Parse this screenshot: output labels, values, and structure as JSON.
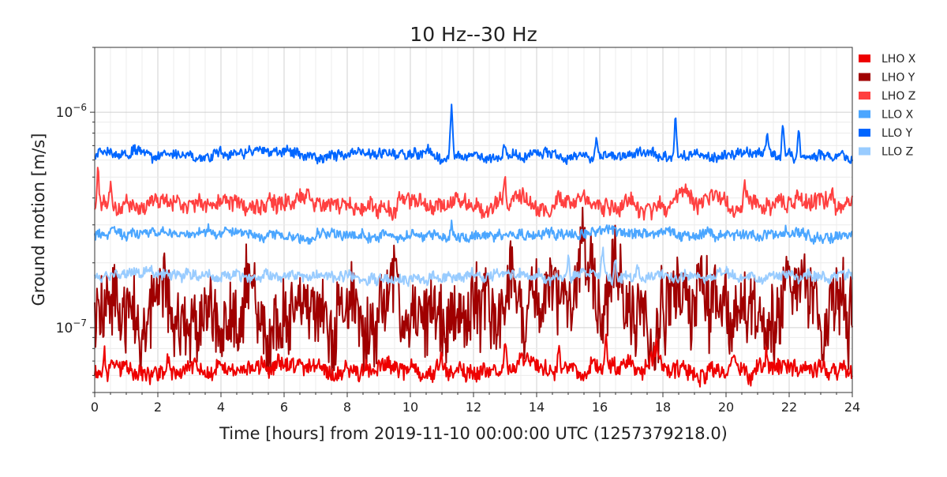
{
  "chart_data": {
    "type": "line",
    "title": "10 Hz--30 Hz",
    "xlabel": "Time [hours] from 2019-11-10 00:00:00 UTC (1257379218.0)",
    "ylabel": "Ground motion [m/s]",
    "xlim": [
      0,
      24
    ],
    "ylim": [
      5e-08,
      2e-06
    ],
    "yscale": "log",
    "grid": true,
    "legend_position": "right",
    "x_ticks": [
      0,
      2,
      4,
      6,
      8,
      10,
      12,
      14,
      16,
      18,
      20,
      22,
      24
    ],
    "x_tick_labels": [
      "0",
      "2",
      "4",
      "6",
      "8",
      "10",
      "12",
      "14",
      "16",
      "18",
      "20",
      "22",
      "24"
    ],
    "y_tick_labels": [
      {
        "value": 1e-06,
        "base": "10",
        "exp": "−6"
      },
      {
        "value": 1e-07,
        "base": "10",
        "exp": "−7"
      }
    ],
    "series": [
      {
        "name": "LHO X",
        "color": "#ee0000",
        "baseline": 6.4e-08,
        "noise": 0.05,
        "spikes": [
          [
            0.3,
            8.6e-08
          ],
          [
            2.3,
            7.2e-08
          ],
          [
            5.8,
            7.4e-08
          ],
          [
            11.0,
            7.5e-08
          ],
          [
            13.0,
            8.5e-08
          ],
          [
            14.7,
            8e-08
          ],
          [
            16.2,
            8.3e-08
          ],
          [
            17.8,
            7.8e-08
          ],
          [
            21.3,
            7.2e-08
          ]
        ]
      },
      {
        "name": "LHO Y",
        "color": "#a00000",
        "baseline": 1.2e-07,
        "noise": 0.22,
        "spikes": []
      },
      {
        "name": "LHO Z",
        "color": "#ff4040",
        "baseline": 3.75e-07,
        "noise": 0.05,
        "spikes": [
          [
            0.1,
            5.2e-07
          ],
          [
            0.5,
            4.5e-07
          ],
          [
            13.0,
            4.6e-07
          ],
          [
            14.7,
            4.7e-07
          ],
          [
            16.2,
            4.5e-07
          ],
          [
            20.6,
            4.5e-07
          ],
          [
            21.3,
            4.3e-07
          ],
          [
            23.4,
            4.4e-07
          ]
        ]
      },
      {
        "name": "LLO X",
        "color": "#4ba6ff",
        "baseline": 2.7e-07,
        "noise": 0.03,
        "spikes": [
          [
            11.3,
            3.2e-07
          ],
          [
            21.9,
            3e-07
          ]
        ]
      },
      {
        "name": "LLO Y",
        "color": "#0066ff",
        "baseline": 6.3e-07,
        "noise": 0.03,
        "spikes": [
          [
            3.8,
            7.2e-07
          ],
          [
            11.3,
            1.1e-06
          ],
          [
            13.0,
            7.3e-07
          ],
          [
            15.9,
            7.7e-07
          ],
          [
            18.4,
            9.6e-07
          ],
          [
            21.3,
            8e-07
          ],
          [
            21.8,
            8.9e-07
          ],
          [
            22.3,
            8.5e-07
          ]
        ]
      },
      {
        "name": "LLO Z",
        "color": "#99ccff",
        "baseline": 1.73e-07,
        "noise": 0.03,
        "spikes": [
          [
            15.0,
            2.2e-07
          ],
          [
            16.1,
            2.25e-07
          ],
          [
            16.5,
            2.2e-07
          ],
          [
            17.2,
            1.95e-07
          ]
        ]
      }
    ]
  }
}
